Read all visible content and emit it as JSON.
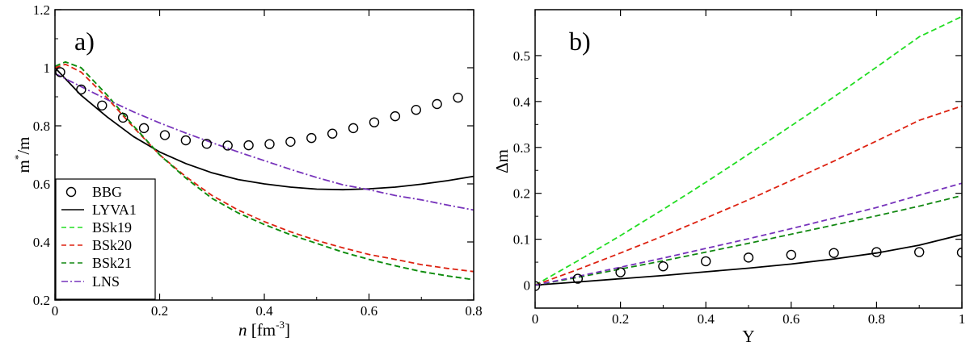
{
  "chart_data": [
    {
      "type": "line",
      "panel_label": "a)",
      "xlabel_italic": "n",
      "xlabel_unit": "[fm",
      "xlabel_sup": "-3",
      "xlabel_close": "]",
      "ylabel_main": "m",
      "ylabel_sup": "*",
      "ylabel_tail": "/m",
      "xlim": [
        0,
        0.8
      ],
      "ylim": [
        0.2,
        1.2
      ],
      "xticks": [
        0,
        0.2,
        0.4,
        0.6,
        0.8
      ],
      "xtick_labels": [
        "0",
        "0.2",
        "0.4",
        "0.6",
        "0.8"
      ],
      "yticks": [
        0.2,
        0.4,
        0.6,
        0.8,
        1,
        1.2
      ],
      "ytick_labels": [
        "0.2",
        "0.4",
        "0.6",
        "0.8",
        "1",
        "1.2"
      ],
      "legend_position": "bottom-left",
      "series": [
        {
          "name": "BBG",
          "style": "circles",
          "color": "#000000",
          "x": [
            0.01,
            0.05,
            0.09,
            0.13,
            0.17,
            0.21,
            0.25,
            0.29,
            0.33,
            0.37,
            0.41,
            0.45,
            0.49,
            0.53,
            0.57,
            0.61,
            0.65,
            0.69,
            0.73,
            0.77
          ],
          "y": [
            0.985,
            0.925,
            0.87,
            0.828,
            0.792,
            0.768,
            0.75,
            0.738,
            0.732,
            0.733,
            0.737,
            0.745,
            0.758,
            0.773,
            0.792,
            0.812,
            0.833,
            0.855,
            0.875,
            0.897
          ]
        },
        {
          "name": "LYVA1",
          "style": "solid",
          "color": "#000000",
          "x": [
            0,
            0.05,
            0.1,
            0.15,
            0.2,
            0.25,
            0.3,
            0.35,
            0.4,
            0.45,
            0.5,
            0.55,
            0.6,
            0.65,
            0.7,
            0.75,
            0.8
          ],
          "y": [
            1.0,
            0.905,
            0.83,
            0.763,
            0.71,
            0.67,
            0.638,
            0.615,
            0.6,
            0.589,
            0.582,
            0.58,
            0.583,
            0.589,
            0.599,
            0.611,
            0.626
          ]
        },
        {
          "name": "BSk19",
          "style": "dashed",
          "color": "#22dd22",
          "x": [
            0,
            0.02,
            0.05,
            0.1,
            0.15,
            0.2,
            0.25,
            0.3,
            0.35,
            0.4,
            0.45,
            0.5,
            0.55,
            0.6,
            0.65,
            0.7,
            0.75,
            0.8
          ],
          "y": [
            1.005,
            1.02,
            1.0,
            0.905,
            0.8,
            0.7,
            0.62,
            0.55,
            0.5,
            0.46,
            0.425,
            0.395,
            0.365,
            0.34,
            0.318,
            0.298,
            0.283,
            0.27
          ]
        },
        {
          "name": "BSk20",
          "style": "dashed",
          "color": "#dd2211",
          "x": [
            0,
            0.02,
            0.05,
            0.1,
            0.15,
            0.2,
            0.25,
            0.3,
            0.35,
            0.4,
            0.45,
            0.5,
            0.55,
            0.6,
            0.65,
            0.7,
            0.75,
            0.8
          ],
          "y": [
            1.0,
            1.012,
            0.985,
            0.895,
            0.795,
            0.7,
            0.625,
            0.56,
            0.51,
            0.47,
            0.435,
            0.405,
            0.38,
            0.357,
            0.34,
            0.322,
            0.309,
            0.298
          ]
        },
        {
          "name": "BSk21",
          "style": "dashed",
          "color": "#118811",
          "x": [
            0,
            0.02,
            0.05,
            0.1,
            0.15,
            0.2,
            0.25,
            0.3,
            0.35,
            0.4,
            0.45,
            0.5,
            0.55,
            0.6,
            0.65,
            0.7,
            0.75,
            0.8
          ],
          "y": [
            1.005,
            1.02,
            1.0,
            0.905,
            0.8,
            0.7,
            0.62,
            0.55,
            0.5,
            0.46,
            0.425,
            0.395,
            0.365,
            0.34,
            0.318,
            0.298,
            0.283,
            0.27
          ]
        },
        {
          "name": "LNS",
          "style": "dashdot",
          "color": "#7733bb",
          "x": [
            0,
            0.05,
            0.1,
            0.15,
            0.2,
            0.25,
            0.3,
            0.35,
            0.4,
            0.45,
            0.5,
            0.55,
            0.6,
            0.65,
            0.7,
            0.75,
            0.8
          ],
          "y": [
            0.98,
            0.935,
            0.89,
            0.848,
            0.81,
            0.775,
            0.742,
            0.71,
            0.68,
            0.65,
            0.622,
            0.597,
            0.58,
            0.56,
            0.545,
            0.527,
            0.51
          ]
        }
      ]
    },
    {
      "type": "line",
      "panel_label": "b)",
      "xlabel": "Y",
      "ylabel": "Δm",
      "xlim": [
        0,
        1
      ],
      "ylim": [
        -0.05,
        0.6
      ],
      "xticks": [
        0,
        0.2,
        0.4,
        0.6,
        0.8,
        1
      ],
      "xtick_labels": [
        "0",
        "0.2",
        "0.4",
        "0.6",
        "0.8",
        "1"
      ],
      "yticks": [
        0,
        0.1,
        0.2,
        0.3,
        0.4,
        0.5
      ],
      "ytick_labels": [
        "0",
        "0.1",
        "0.2",
        "0.3",
        "0.4",
        "0.5"
      ],
      "series": [
        {
          "name": "BBG",
          "style": "circles",
          "color": "#000000",
          "x": [
            0,
            0.1,
            0.2,
            0.3,
            0.4,
            0.5,
            0.6,
            0.7,
            0.8,
            0.9,
            1.0
          ],
          "y": [
            -0.002,
            0.014,
            0.028,
            0.041,
            0.052,
            0.06,
            0.066,
            0.07,
            0.072,
            0.072,
            0.071
          ]
        },
        {
          "name": "LYVA1",
          "style": "solid",
          "color": "#000000",
          "x": [
            0,
            0.1,
            0.2,
            0.3,
            0.4,
            0.5,
            0.6,
            0.7,
            0.8,
            0.9,
            1.0
          ],
          "y": [
            0,
            0.007,
            0.014,
            0.021,
            0.029,
            0.037,
            0.046,
            0.057,
            0.07,
            0.087,
            0.11
          ]
        },
        {
          "name": "BSk19",
          "style": "dashed",
          "color": "#22dd22",
          "x": [
            0,
            0.1,
            0.2,
            0.3,
            0.4,
            0.5,
            0.6,
            0.7,
            0.8,
            0.9,
            1.0
          ],
          "y": [
            0,
            0.053,
            0.108,
            0.165,
            0.224,
            0.285,
            0.347,
            0.41,
            0.475,
            0.541,
            0.585
          ]
        },
        {
          "name": "BSk20",
          "style": "dashed",
          "color": "#dd2211",
          "x": [
            0,
            0.1,
            0.2,
            0.3,
            0.4,
            0.5,
            0.6,
            0.7,
            0.8,
            0.9,
            1.0
          ],
          "y": [
            0,
            0.034,
            0.07,
            0.107,
            0.146,
            0.186,
            0.228,
            0.27,
            0.314,
            0.359,
            0.39
          ]
        },
        {
          "name": "BSk21",
          "style": "dashed",
          "color": "#118811",
          "x": [
            0,
            0.1,
            0.2,
            0.3,
            0.4,
            0.5,
            0.6,
            0.7,
            0.8,
            0.9,
            1.0
          ],
          "y": [
            0,
            0.017,
            0.035,
            0.053,
            0.072,
            0.091,
            0.111,
            0.131,
            0.151,
            0.172,
            0.195
          ]
        },
        {
          "name": "LNS",
          "style": "dashed",
          "color": "#7733bb",
          "x": [
            0,
            0.1,
            0.2,
            0.3,
            0.4,
            0.5,
            0.6,
            0.7,
            0.8,
            0.9,
            1.0
          ],
          "y": [
            0,
            0.019,
            0.039,
            0.059,
            0.08,
            0.101,
            0.123,
            0.146,
            0.169,
            0.196,
            0.222
          ]
        }
      ]
    }
  ]
}
